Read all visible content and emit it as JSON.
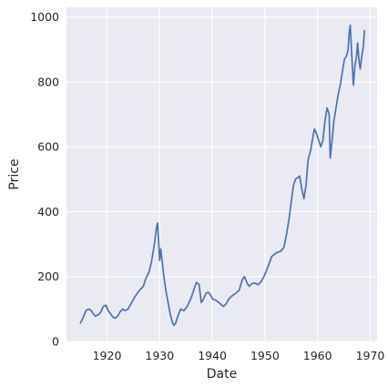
{
  "chart_data": {
    "type": "line",
    "title": "",
    "xlabel": "Date",
    "ylabel": "Price",
    "xlim": [
      1912.3,
      1971.3
    ],
    "ylim": [
      0,
      1030
    ],
    "grid": true,
    "legend": "none",
    "x_ticks": [
      1920,
      1930,
      1940,
      1950,
      1960,
      1970
    ],
    "y_ticks": [
      0,
      200,
      400,
      600,
      800,
      1000
    ],
    "x_tick_labels": [
      "1920",
      "1930",
      "1940",
      "1950",
      "1960",
      "1970"
    ],
    "y_tick_labels": [
      "0",
      "200",
      "400",
      "600",
      "800",
      "1000"
    ],
    "colors": {
      "background": "#eaeaf2",
      "grid": "#ffffff",
      "line": "#4c72b0",
      "text": "#262626"
    },
    "series": [
      {
        "x": [
          1914.9,
          1915.5,
          1916.0,
          1916.5,
          1917.0,
          1917.4,
          1917.8,
          1918.3,
          1918.8,
          1919.3,
          1919.8,
          1920.2,
          1920.7,
          1921.2,
          1921.6,
          1922.1,
          1922.5,
          1923.0,
          1923.4,
          1924.0,
          1924.6,
          1925.2,
          1925.8,
          1926.3,
          1926.9,
          1927.4,
          1928.0,
          1928.5,
          1929.0,
          1929.4,
          1929.6,
          1929.8,
          1930.0,
          1930.2,
          1930.5,
          1930.8,
          1931.2,
          1931.6,
          1932.0,
          1932.4,
          1932.7,
          1933.0,
          1933.5,
          1934.0,
          1934.6,
          1935.1,
          1935.6,
          1936.1,
          1936.6,
          1937.0,
          1937.5,
          1937.9,
          1938.3,
          1938.8,
          1939.2,
          1939.6,
          1940.1,
          1940.6,
          1941.1,
          1941.6,
          1942.1,
          1942.6,
          1943.1,
          1943.7,
          1944.4,
          1945.1,
          1945.7,
          1946.1,
          1946.6,
          1947.0,
          1947.5,
          1948.1,
          1948.7,
          1949.3,
          1949.8,
          1950.2,
          1950.8,
          1951.3,
          1951.9,
          1952.4,
          1953.0,
          1953.6,
          1954.1,
          1954.6,
          1955.0,
          1955.4,
          1955.8,
          1956.2,
          1956.6,
          1957.0,
          1957.4,
          1957.8,
          1958.2,
          1958.7,
          1959.0,
          1959.4,
          1959.8,
          1960.2,
          1960.6,
          1961.0,
          1961.4,
          1961.8,
          1962.2,
          1962.4,
          1962.7,
          1963.1,
          1963.5,
          1963.9,
          1964.3,
          1964.7,
          1965.1,
          1965.5,
          1965.8,
          1966.0,
          1966.2,
          1966.5,
          1966.8,
          1967.1,
          1967.4,
          1967.6,
          1967.9,
          1968.1,
          1968.4,
          1968.7,
          1968.9
        ],
        "y": [
          55,
          75,
          95,
          100,
          95,
          85,
          78,
          82,
          90,
          108,
          112,
          95,
          85,
          74,
          72,
          80,
          92,
          100,
          95,
          100,
          118,
          135,
          150,
          160,
          170,
          195,
          215,
          250,
          300,
          350,
          365,
          310,
          250,
          285,
          245,
          200,
          155,
          120,
          85,
          60,
          50,
          55,
          80,
          100,
          95,
          105,
          120,
          140,
          165,
          182,
          175,
          120,
          130,
          148,
          152,
          145,
          130,
          128,
          122,
          115,
          108,
          115,
          130,
          140,
          148,
          158,
          190,
          200,
          180,
          170,
          178,
          180,
          175,
          185,
          200,
          215,
          240,
          262,
          270,
          275,
          278,
          290,
          330,
          380,
          430,
          480,
          500,
          505,
          510,
          470,
          440,
          480,
          560,
          590,
          620,
          655,
          640,
          620,
          600,
          620,
          680,
          720,
          700,
          565,
          610,
          680,
          720,
          760,
          790,
          830,
          870,
          880,
          900,
          950,
          975,
          880,
          790,
          850,
          880,
          920,
          860,
          840,
          880,
          910,
          960
        ]
      }
    ]
  }
}
